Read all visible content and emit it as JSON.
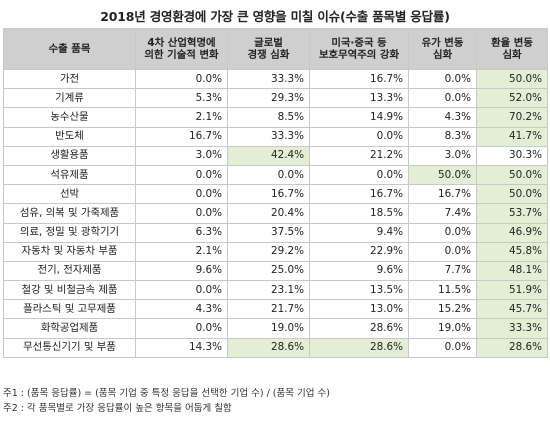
{
  "title": "2018년 경영환경에 가장 큰 영향을 미칠 이슈(수출 품목별 응답률)",
  "table": {
    "headers": [
      [
        "수출 품목"
      ],
      [
        "4차 산업혁명에",
        "의한 기술적 변화"
      ],
      [
        "글로벌",
        "경쟁 심화"
      ],
      [
        "미국·중국 등",
        "보호무역주의 강화"
      ],
      [
        "유가 변동",
        "심화"
      ],
      [
        "환율 변동",
        "심화"
      ]
    ],
    "rows": [
      {
        "category": "가전",
        "values": [
          "0.0%",
          "33.3%",
          "16.7%",
          "0.0%",
          "50.0%"
        ],
        "highlight": [
          4
        ]
      },
      {
        "category": "기계류",
        "values": [
          "5.3%",
          "29.3%",
          "13.3%",
          "0.0%",
          "52.0%"
        ],
        "highlight": [
          4
        ]
      },
      {
        "category": "농수산물",
        "values": [
          "2.1%",
          "8.5%",
          "14.9%",
          "4.3%",
          "70.2%"
        ],
        "highlight": [
          4
        ]
      },
      {
        "category": "반도체",
        "values": [
          "16.7%",
          "33.3%",
          "0.0%",
          "8.3%",
          "41.7%"
        ],
        "highlight": [
          4
        ]
      },
      {
        "category": "생활용품",
        "values": [
          "3.0%",
          "42.4%",
          "21.2%",
          "3.0%",
          "30.3%"
        ],
        "highlight": [
          1
        ]
      },
      {
        "category": "석유제품",
        "values": [
          "0.0%",
          "0.0%",
          "0.0%",
          "50.0%",
          "50.0%"
        ],
        "highlight": [
          3,
          4
        ]
      },
      {
        "category": "선박",
        "values": [
          "0.0%",
          "16.7%",
          "16.7%",
          "16.7%",
          "50.0%"
        ],
        "highlight": [
          4
        ]
      },
      {
        "category": "섬유, 의복 및 가죽제품",
        "values": [
          "0.0%",
          "20.4%",
          "18.5%",
          "7.4%",
          "53.7%"
        ],
        "highlight": [
          4
        ]
      },
      {
        "category": "의료, 정밀 및 광학기기",
        "values": [
          "6.3%",
          "37.5%",
          "9.4%",
          "0.0%",
          "46.9%"
        ],
        "highlight": [
          4
        ]
      },
      {
        "category": "자동차 및 자동차 부품",
        "values": [
          "2.1%",
          "29.2%",
          "22.9%",
          "0.0%",
          "45.8%"
        ],
        "highlight": [
          4
        ]
      },
      {
        "category": "전기, 전자제품",
        "values": [
          "9.6%",
          "25.0%",
          "9.6%",
          "7.7%",
          "48.1%"
        ],
        "highlight": [
          4
        ]
      },
      {
        "category": "철강 및 비철금속 제품",
        "values": [
          "0.0%",
          "23.1%",
          "13.5%",
          "11.5%",
          "51.9%"
        ],
        "highlight": [
          4
        ]
      },
      {
        "category": "플라스틱 및 고무제품",
        "values": [
          "4.3%",
          "21.7%",
          "13.0%",
          "15.2%",
          "45.7%"
        ],
        "highlight": [
          4
        ]
      },
      {
        "category": "화학공업제품",
        "values": [
          "0.0%",
          "19.0%",
          "28.6%",
          "19.0%",
          "33.3%"
        ],
        "highlight": [
          4
        ]
      },
      {
        "category": "무선통신기기 및 부품",
        "values": [
          "14.3%",
          "28.6%",
          "28.6%",
          "0.0%",
          "28.6%"
        ],
        "highlight": [
          1,
          2,
          4
        ]
      }
    ]
  },
  "notes": [
    "주1 : (품목 응답률) = (품목 기업 중 특정 응답을 선택한 기업 수) / (품목 기업 수)",
    "주2 : 각 품목별로 가장 응답률이 높은 항목을 어둡게 칠함"
  ],
  "colors": {
    "header_bg": "#cfcfcf",
    "highlight_bg": "#e3efd5",
    "border": "#c8c8c8"
  }
}
